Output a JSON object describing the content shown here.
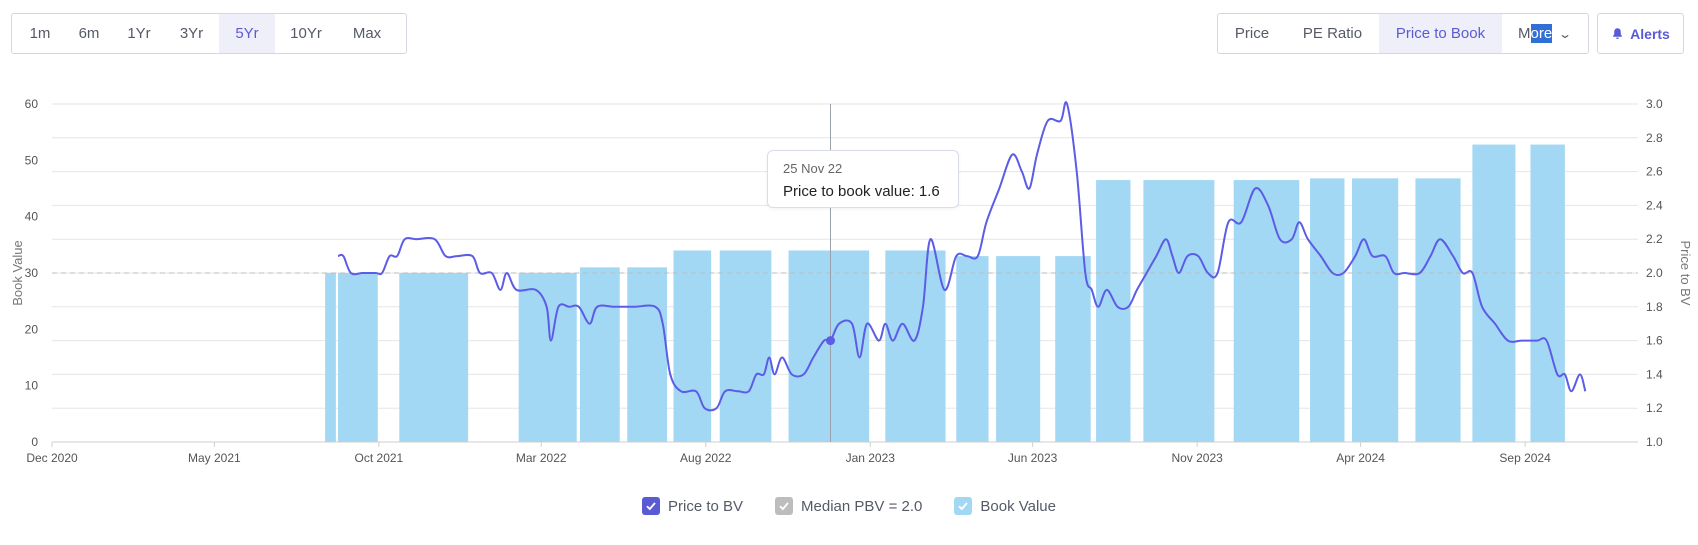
{
  "range_tabs": [
    {
      "label": "1m",
      "active": false
    },
    {
      "label": "6m",
      "active": false
    },
    {
      "label": "1Yr",
      "active": false
    },
    {
      "label": "3Yr",
      "active": false
    },
    {
      "label": "5Yr",
      "active": true
    },
    {
      "label": "10Yr",
      "active": false
    },
    {
      "label": "Max",
      "active": false
    }
  ],
  "metric_tabs": [
    {
      "label": "Price",
      "active": false
    },
    {
      "label": "PE Ratio",
      "active": false
    },
    {
      "label": "Price to Book",
      "active": true
    }
  ],
  "more": {
    "prefix": "M",
    "selected": "ore"
  },
  "alerts_label": "Alerts",
  "colors": {
    "accent": "#5a5bd4",
    "bar": "#a3d8f4",
    "line": "#5c5ce6",
    "median": "#bdbdbd"
  },
  "tooltip": {
    "date": "25 Nov 22",
    "text": "Price to book value: 1.6"
  },
  "legend": [
    {
      "label": "Price to BV",
      "color": "#5a5bd4",
      "checked": true
    },
    {
      "label": "Median PBV = 2.0",
      "color": "#bdbdbd",
      "checked": true
    },
    {
      "label": "Book Value",
      "color": "#a3d8f4",
      "checked": true
    }
  ],
  "chart_data": {
    "type": "bar+line",
    "xlabel": "",
    "x_ticks": [
      "Dec 2020",
      "May 2021",
      "Oct 2021",
      "Mar 2022",
      "Aug 2022",
      "Jan 2023",
      "Jun 2023",
      "Nov 2023",
      "Apr 2024",
      "Sep 2024"
    ],
    "y_left": {
      "label": "Book Value",
      "ticks": [
        0,
        10,
        20,
        30,
        40,
        50,
        60
      ],
      "lim": [
        0,
        60
      ]
    },
    "y_right": {
      "label": "Price to BV",
      "ticks": [
        "1.0",
        "1.2",
        "1.4",
        "1.6",
        "1.8",
        "2.0",
        "2.2",
        "2.4",
        "2.6",
        "2.8",
        "3.0"
      ],
      "lim": [
        1.0,
        3.0
      ]
    },
    "median": 2.0,
    "x_range": [
      "2020-12-01",
      "2024-12-15"
    ],
    "book_value": [
      {
        "start": "2021-08-12",
        "end": "2021-08-22",
        "value": 30
      },
      {
        "start": "2021-08-24",
        "end": "2021-09-30",
        "value": 30
      },
      {
        "start": "2021-10-20",
        "end": "2021-12-23",
        "value": 30
      },
      {
        "start": "2022-02-08",
        "end": "2022-04-03",
        "value": 30
      },
      {
        "start": "2022-04-06",
        "end": "2022-05-13",
        "value": 31
      },
      {
        "start": "2022-05-20",
        "end": "2022-06-26",
        "value": 31
      },
      {
        "start": "2022-07-02",
        "end": "2022-08-06",
        "value": 34
      },
      {
        "start": "2022-08-14",
        "end": "2022-10-01",
        "value": 34
      },
      {
        "start": "2022-10-17",
        "end": "2022-12-31",
        "value": 34
      },
      {
        "start": "2023-01-15",
        "end": "2023-03-12",
        "value": 34
      },
      {
        "start": "2023-03-22",
        "end": "2023-04-21",
        "value": 33
      },
      {
        "start": "2023-04-28",
        "end": "2023-06-08",
        "value": 33
      },
      {
        "start": "2023-06-22",
        "end": "2023-07-25",
        "value": 33
      },
      {
        "start": "2023-07-30",
        "end": "2023-08-31",
        "value": 46.5
      },
      {
        "start": "2023-09-12",
        "end": "2023-11-17",
        "value": 46.5
      },
      {
        "start": "2023-12-05",
        "end": "2024-02-04",
        "value": 46.5
      },
      {
        "start": "2024-02-14",
        "end": "2024-03-17",
        "value": 46.8
      },
      {
        "start": "2024-03-24",
        "end": "2024-05-06",
        "value": 46.8
      },
      {
        "start": "2024-05-22",
        "end": "2024-07-03",
        "value": 46.8
      },
      {
        "start": "2024-07-14",
        "end": "2024-08-23",
        "value": 52.8
      },
      {
        "start": "2024-09-06",
        "end": "2024-10-08",
        "value": 52.8
      }
    ],
    "price_to_bv": [
      [
        "2021-08-24",
        2.1
      ],
      [
        "2021-08-29",
        2.1
      ],
      [
        "2021-09-05",
        2.0
      ],
      [
        "2021-09-16",
        2.0
      ],
      [
        "2021-09-28",
        2.0
      ],
      [
        "2021-10-04",
        2.0
      ],
      [
        "2021-10-11",
        2.1
      ],
      [
        "2021-10-18",
        2.1
      ],
      [
        "2021-10-25",
        2.2
      ],
      [
        "2021-11-05",
        2.2
      ],
      [
        "2021-11-22",
        2.2
      ],
      [
        "2021-12-02",
        2.1
      ],
      [
        "2021-12-13",
        2.1
      ],
      [
        "2021-12-27",
        2.1
      ],
      [
        "2022-01-03",
        2.0
      ],
      [
        "2022-01-14",
        2.0
      ],
      [
        "2022-01-22",
        1.9
      ],
      [
        "2022-01-28",
        2.0
      ],
      [
        "2022-02-06",
        1.9
      ],
      [
        "2022-02-24",
        1.9
      ],
      [
        "2022-03-06",
        1.8
      ],
      [
        "2022-03-10",
        1.6
      ],
      [
        "2022-03-17",
        1.8
      ],
      [
        "2022-03-27",
        1.8
      ],
      [
        "2022-04-05",
        1.8
      ],
      [
        "2022-04-15",
        1.7
      ],
      [
        "2022-04-22",
        1.8
      ],
      [
        "2022-05-08",
        1.8
      ],
      [
        "2022-05-26",
        1.8
      ],
      [
        "2022-06-15",
        1.8
      ],
      [
        "2022-06-22",
        1.7
      ],
      [
        "2022-06-29",
        1.4
      ],
      [
        "2022-07-09",
        1.3
      ],
      [
        "2022-07-23",
        1.3
      ],
      [
        "2022-07-31",
        1.2
      ],
      [
        "2022-08-11",
        1.2
      ],
      [
        "2022-08-19",
        1.3
      ],
      [
        "2022-08-31",
        1.3
      ],
      [
        "2022-09-10",
        1.3
      ],
      [
        "2022-09-17",
        1.4
      ],
      [
        "2022-09-24",
        1.4
      ],
      [
        "2022-09-29",
        1.5
      ],
      [
        "2022-10-04",
        1.4
      ],
      [
        "2022-10-11",
        1.5
      ],
      [
        "2022-10-20",
        1.4
      ],
      [
        "2022-10-31",
        1.4
      ],
      [
        "2022-11-09",
        1.5
      ],
      [
        "2022-11-19",
        1.6
      ],
      [
        "2022-11-25",
        1.6
      ],
      [
        "2022-12-03",
        1.7
      ],
      [
        "2022-12-15",
        1.7
      ],
      [
        "2022-12-22",
        1.5
      ],
      [
        "2022-12-29",
        1.7
      ],
      [
        "2023-01-09",
        1.6
      ],
      [
        "2023-01-15",
        1.7
      ],
      [
        "2023-01-22",
        1.6
      ],
      [
        "2023-01-31",
        1.7
      ],
      [
        "2023-02-11",
        1.6
      ],
      [
        "2023-02-19",
        1.8
      ],
      [
        "2023-02-26",
        2.2
      ],
      [
        "2023-03-11",
        1.9
      ],
      [
        "2023-03-22",
        2.1
      ],
      [
        "2023-04-01",
        2.1
      ],
      [
        "2023-04-11",
        2.1
      ],
      [
        "2023-04-19",
        2.3
      ],
      [
        "2023-05-01",
        2.5
      ],
      [
        "2023-05-13",
        2.7
      ],
      [
        "2023-05-22",
        2.6
      ],
      [
        "2023-05-29",
        2.5
      ],
      [
        "2023-06-05",
        2.7
      ],
      [
        "2023-06-15",
        2.9
      ],
      [
        "2023-06-27",
        2.9
      ],
      [
        "2023-07-03",
        3.0
      ],
      [
        "2023-07-12",
        2.6
      ],
      [
        "2023-07-20",
        2.0
      ],
      [
        "2023-07-26",
        1.9
      ],
      [
        "2023-08-01",
        1.8
      ],
      [
        "2023-08-09",
        1.9
      ],
      [
        "2023-08-19",
        1.8
      ],
      [
        "2023-08-29",
        1.8
      ],
      [
        "2023-09-06",
        1.9
      ],
      [
        "2023-09-15",
        2.0
      ],
      [
        "2023-09-24",
        2.1
      ],
      [
        "2023-10-03",
        2.2
      ],
      [
        "2023-10-09",
        2.1
      ],
      [
        "2023-10-15",
        2.0
      ],
      [
        "2023-10-23",
        2.1
      ],
      [
        "2023-11-02",
        2.1
      ],
      [
        "2023-11-11",
        2.0
      ],
      [
        "2023-11-20",
        2.0
      ],
      [
        "2023-11-30",
        2.3
      ],
      [
        "2023-12-12",
        2.3
      ],
      [
        "2023-12-25",
        2.5
      ],
      [
        "2024-01-06",
        2.4
      ],
      [
        "2024-01-17",
        2.2
      ],
      [
        "2024-01-28",
        2.2
      ],
      [
        "2024-02-04",
        2.3
      ],
      [
        "2024-02-12",
        2.2
      ],
      [
        "2024-02-24",
        2.1
      ],
      [
        "2024-03-06",
        2.0
      ],
      [
        "2024-03-16",
        2.0
      ],
      [
        "2024-03-27",
        2.1
      ],
      [
        "2024-04-04",
        2.2
      ],
      [
        "2024-04-12",
        2.1
      ],
      [
        "2024-04-24",
        2.1
      ],
      [
        "2024-05-02",
        2.0
      ],
      [
        "2024-05-12",
        2.0
      ],
      [
        "2024-05-26",
        2.0
      ],
      [
        "2024-06-05",
        2.1
      ],
      [
        "2024-06-14",
        2.2
      ],
      [
        "2024-06-26",
        2.1
      ],
      [
        "2024-07-05",
        2.0
      ],
      [
        "2024-07-14",
        2.0
      ],
      [
        "2024-07-23",
        1.8
      ],
      [
        "2024-08-04",
        1.7
      ],
      [
        "2024-08-16",
        1.6
      ],
      [
        "2024-08-29",
        1.6
      ],
      [
        "2024-09-12",
        1.6
      ],
      [
        "2024-09-21",
        1.6
      ],
      [
        "2024-10-01",
        1.4
      ],
      [
        "2024-10-08",
        1.4
      ],
      [
        "2024-10-14",
        1.3
      ],
      [
        "2024-10-22",
        1.4
      ],
      [
        "2024-10-27",
        1.3
      ]
    ],
    "hover_point": {
      "date": "2022-11-25",
      "value": 1.6
    }
  }
}
